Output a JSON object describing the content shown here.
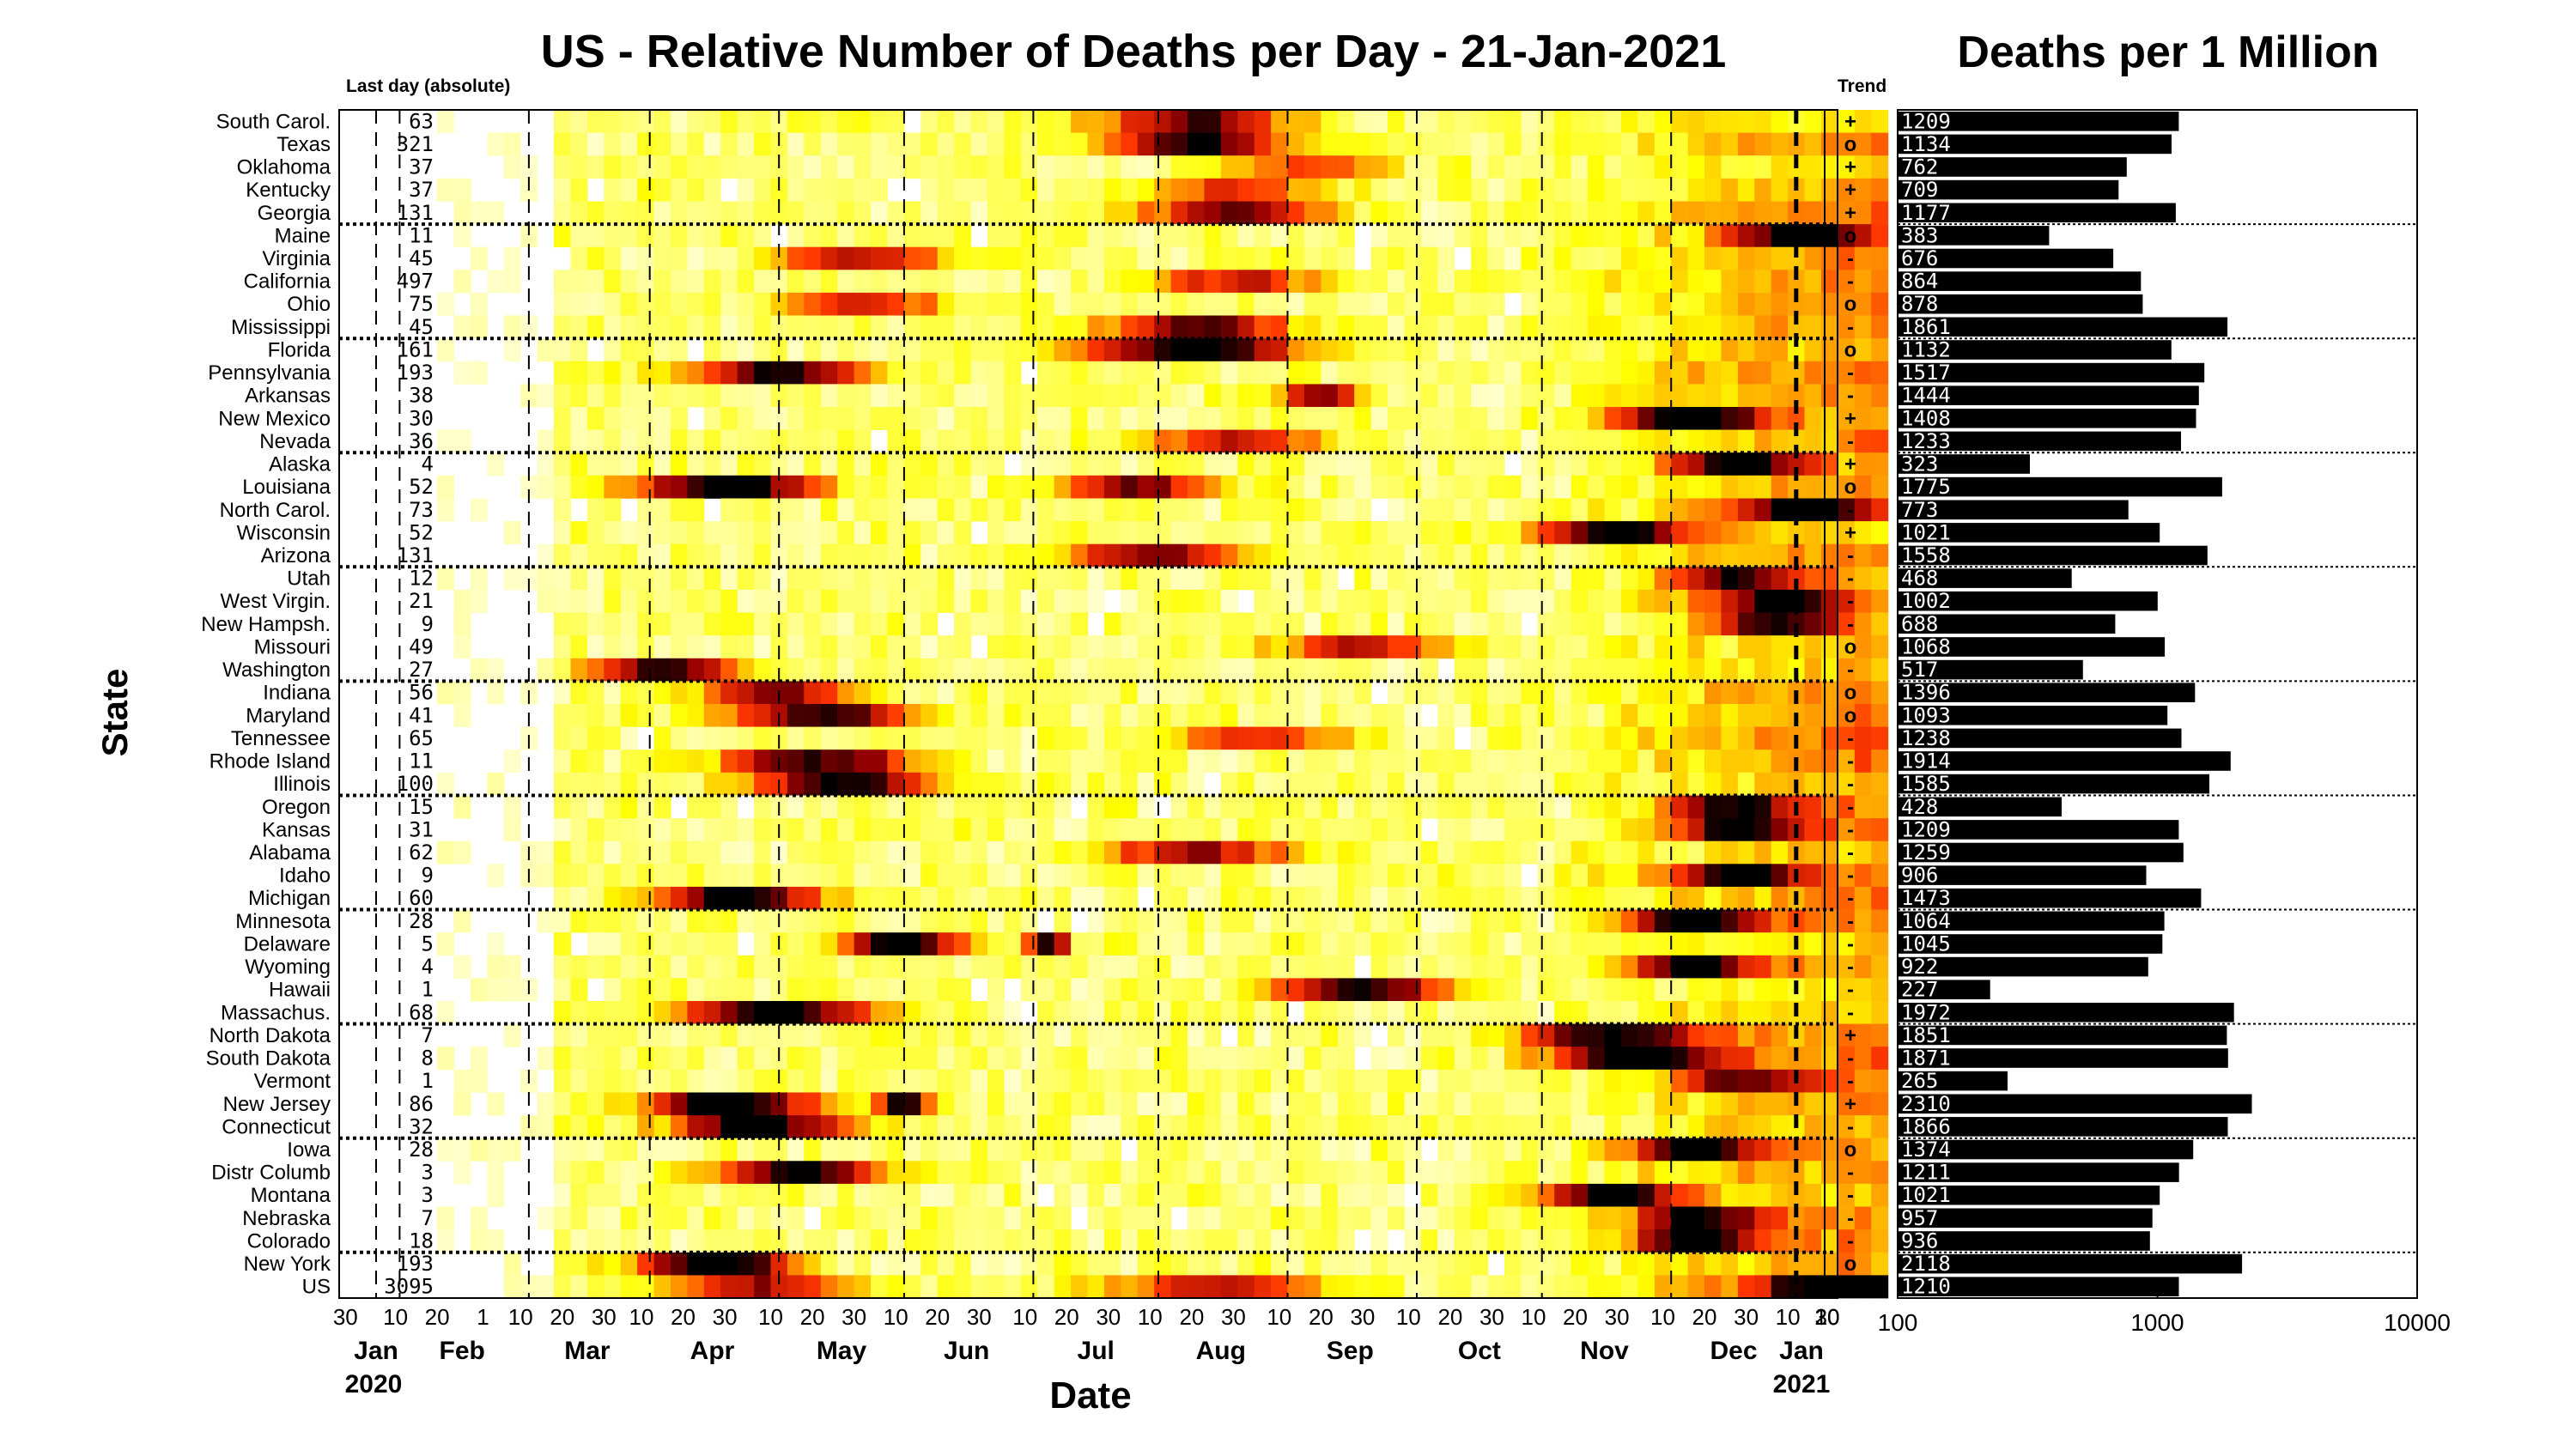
{
  "title": "US - Relative Number of Deaths per Day - 21-Jan-2021",
  "bar_title": "Deaths per 1 Million",
  "last_day_header": "Last day (absolute)",
  "trend_header": "Trend",
  "ylabel": "State",
  "xlabel": "Date",
  "colors": {
    "frame": "#000000",
    "separator": "#000000",
    "us_separator": "#ff0000",
    "bar": "#000000",
    "bar_text": "#ffffff"
  },
  "chart_data": [
    {
      "type": "heatmap",
      "title": "US - Relative Number of Deaths per Day - 21-Jan-2021",
      "xlabel": "Date",
      "ylabel": "State",
      "colormap": "hot (white = low, yellow, orange, red, black = high)",
      "x_range": [
        "2020-01-21",
        "2021-01-21"
      ],
      "x_tick_days": [
        "30",
        "10",
        "20",
        "1",
        "10",
        "20",
        "30",
        "10",
        "20",
        "30",
        "10",
        "20",
        "30",
        "10",
        "20",
        "30",
        "10",
        "20",
        "30",
        "10",
        "20",
        "30",
        "10",
        "20",
        "30",
        "10",
        "20",
        "30",
        "10",
        "20",
        "30",
        "10",
        "20",
        "30",
        "10",
        "20",
        "30",
        "10",
        "20"
      ],
      "x_month_labels": [
        "Jan",
        "Feb",
        "Mar",
        "Apr",
        "May",
        "Jun",
        "Jul",
        "Aug",
        "Sep",
        "Oct",
        "Nov",
        "Dec",
        "Jan"
      ],
      "x_year_labels": [
        "2020",
        "2021"
      ],
      "states": [
        "South Carol.",
        "Texas",
        "Oklahoma",
        "Kentucky",
        "Georgia",
        "Maine",
        "Virginia",
        "California",
        "Ohio",
        "Mississippi",
        "Florida",
        "Pennsylvania",
        "Arkansas",
        "New Mexico",
        "Nevada",
        "Alaska",
        "Louisiana",
        "North Carol.",
        "Wisconsin",
        "Arizona",
        "Utah",
        "West Virgin.",
        "New Hampsh.",
        "Missouri",
        "Washington",
        "Indiana",
        "Maryland",
        "Tennessee",
        "Rhode Island",
        "Illinois",
        "Oregon",
        "Kansas",
        "Alabama",
        "Idaho",
        "Michigan",
        "Minnesota",
        "Delaware",
        "Wyoming",
        "Hawaii",
        "Massachus.",
        "North Dakota",
        "South Dakota",
        "Vermont",
        "New Jersey",
        "Connecticut",
        "Iowa",
        "Distr Columb",
        "Montana",
        "Nebraska",
        "Colorado",
        "New York",
        "US"
      ],
      "last_day_absolute": [
        "63",
        "321",
        "37",
        "37",
        "131",
        "11",
        "45",
        "497",
        "75",
        "45",
        "161",
        "193",
        "38",
        "30",
        "36",
        "4",
        "52",
        "73",
        "52",
        "131",
        "12",
        "21",
        "9",
        "49",
        "27",
        "56",
        "41",
        "65",
        "11",
        "100",
        "15",
        "31",
        "62",
        "9",
        "60",
        "28",
        "5",
        "4",
        "1",
        "68",
        "7",
        "8",
        "1",
        "86",
        "32",
        "28",
        "3",
        "3",
        "7",
        "18",
        "193",
        "3095"
      ],
      "trend": [
        "+",
        "o",
        "+",
        "+",
        "+",
        "o",
        "-",
        "-",
        "o",
        "-",
        "o",
        "-",
        "-",
        "+",
        "-",
        "+",
        "o",
        "-",
        "+",
        "-",
        "-",
        "-",
        "-",
        "o",
        "-",
        "o",
        "o",
        "-",
        "-",
        "-",
        "-",
        "-",
        "-",
        "-",
        "-",
        "-",
        "-",
        "-",
        "-",
        "-",
        "+",
        "-",
        "-",
        "+",
        "-",
        "o",
        "-",
        "-",
        "-",
        "-",
        "o",
        "-"
      ],
      "separators_after_row": [
        5,
        10,
        15,
        20,
        25,
        30,
        35,
        40,
        45,
        50
      ]
    },
    {
      "type": "bar",
      "title": "Deaths per 1 Million",
      "orientation": "horizontal",
      "x_scale": "log",
      "xlim": [
        100,
        10000
      ],
      "x_tick_labels": [
        "100",
        "1000",
        "10000"
      ],
      "categories": [
        "South Carol.",
        "Texas",
        "Oklahoma",
        "Kentucky",
        "Georgia",
        "Maine",
        "Virginia",
        "California",
        "Ohio",
        "Mississippi",
        "Florida",
        "Pennsylvania",
        "Arkansas",
        "New Mexico",
        "Nevada",
        "Alaska",
        "Louisiana",
        "North Carol.",
        "Wisconsin",
        "Arizona",
        "Utah",
        "West Virgin.",
        "New Hampsh.",
        "Missouri",
        "Washington",
        "Indiana",
        "Maryland",
        "Tennessee",
        "Rhode Island",
        "Illinois",
        "Oregon",
        "Kansas",
        "Alabama",
        "Idaho",
        "Michigan",
        "Minnesota",
        "Delaware",
        "Wyoming",
        "Hawaii",
        "Massachus.",
        "North Dakota",
        "South Dakota",
        "Vermont",
        "New Jersey",
        "Connecticut",
        "Iowa",
        "Distr Columb",
        "Montana",
        "Nebraska",
        "Colorado",
        "New York",
        "US"
      ],
      "values": [
        1209,
        1134,
        762,
        709,
        1177,
        383,
        676,
        864,
        878,
        1861,
        1132,
        1517,
        1444,
        1408,
        1233,
        323,
        1775,
        773,
        1021,
        1558,
        468,
        1002,
        688,
        1068,
        517,
        1396,
        1093,
        1238,
        1914,
        1585,
        428,
        1209,
        1259,
        906,
        1473,
        1064,
        1045,
        922,
        227,
        1972,
        1851,
        1871,
        265,
        2310,
        1866,
        1374,
        1211,
        1021,
        957,
        936,
        2118,
        1210
      ]
    }
  ]
}
